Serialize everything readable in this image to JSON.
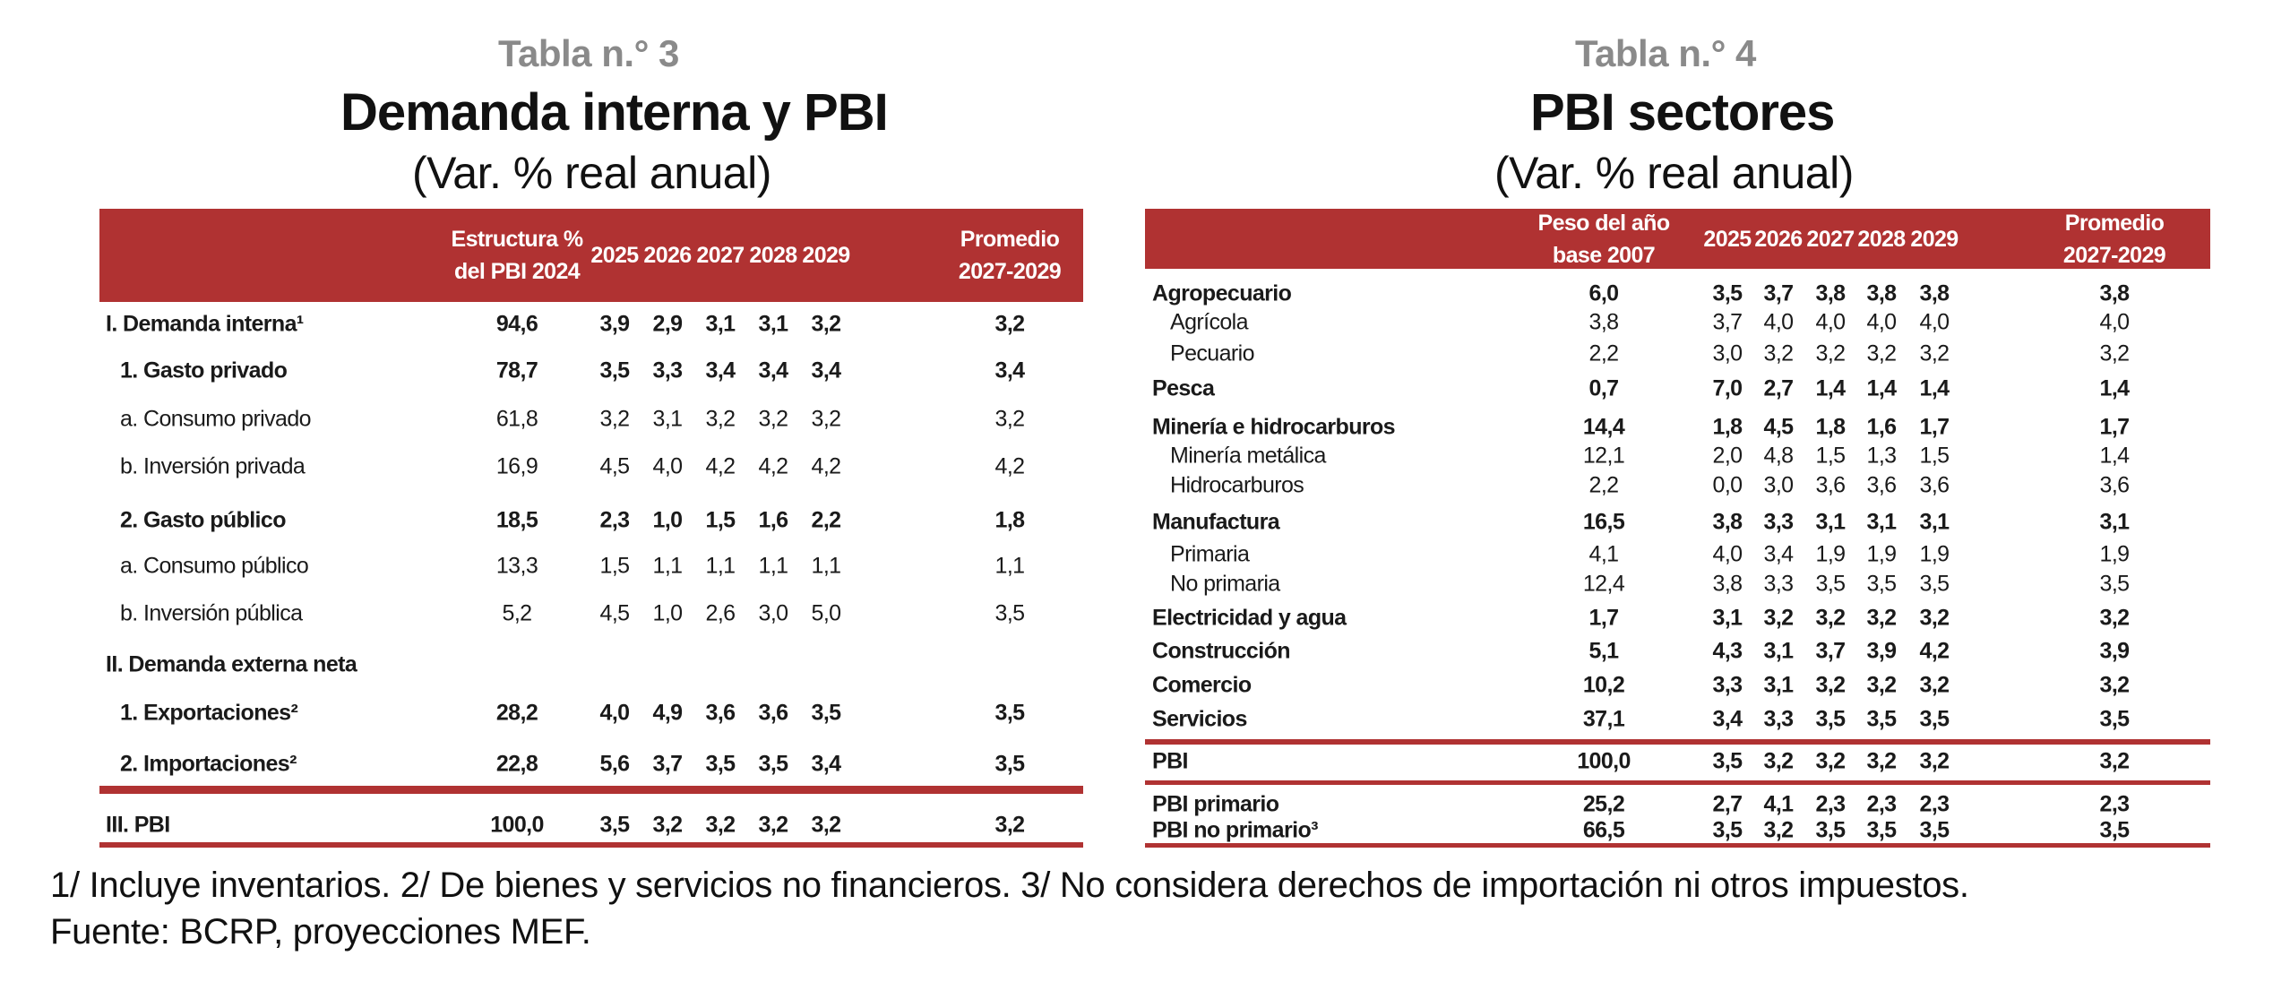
{
  "table3": {
    "number": "Tabla n.° 3",
    "title": "Demanda interna y PBI",
    "subtitle": "(Var. % real anual)",
    "headers": [
      "Estructura %\ndel PBI 2024",
      "2025",
      "2026",
      "2027",
      "2028",
      "2029",
      "Promedio\n2027-2029"
    ],
    "rows": [
      {
        "label": "I. Demanda interna¹",
        "bold": true,
        "indent": 0,
        "values": [
          "94,6",
          "3,9",
          "2,9",
          "3,1",
          "3,1",
          "3,2",
          "3,2"
        ]
      },
      {
        "label": "1. Gasto privado",
        "bold": true,
        "indent": 1,
        "values": [
          "78,7",
          "3,5",
          "3,3",
          "3,4",
          "3,4",
          "3,4",
          "3,4"
        ]
      },
      {
        "label": "a. Consumo privado",
        "bold": false,
        "indent": 1,
        "values": [
          "61,8",
          "3,2",
          "3,1",
          "3,2",
          "3,2",
          "3,2",
          "3,2"
        ]
      },
      {
        "label": "b.  Inversión privada",
        "bold": false,
        "indent": 1,
        "values": [
          "16,9",
          "4,5",
          "4,0",
          "4,2",
          "4,2",
          "4,2",
          "4,2"
        ]
      },
      {
        "label": "2. Gasto público",
        "bold": true,
        "indent": 1,
        "values": [
          "18,5",
          "2,3",
          "1,0",
          "1,5",
          "1,6",
          "2,2",
          "1,8"
        ]
      },
      {
        "label": "a. Consumo público",
        "bold": false,
        "indent": 1,
        "values": [
          "13,3",
          "1,5",
          "1,1",
          "1,1",
          "1,1",
          "1,1",
          "1,1"
        ]
      },
      {
        "label": "b. Inversión pública",
        "bold": false,
        "indent": 1,
        "values": [
          "5,2",
          "4,5",
          "1,0",
          "2,6",
          "3,0",
          "5,0",
          "3,5"
        ]
      },
      {
        "label": "II. Demanda externa neta",
        "bold": true,
        "indent": 0,
        "values": [
          "",
          "",
          "",
          "",
          "",
          "",
          ""
        ]
      },
      {
        "label": "1. Exportaciones²",
        "bold": true,
        "indent": 1,
        "values": [
          "28,2",
          "4,0",
          "4,9",
          "3,6",
          "3,6",
          "3,5",
          "3,5"
        ]
      },
      {
        "label": "2. Importaciones²",
        "bold": true,
        "indent": 1,
        "values": [
          "22,8",
          "5,6",
          "3,7",
          "3,5",
          "3,5",
          "3,4",
          "3,5"
        ]
      },
      {
        "label": "III. PBI",
        "bold": true,
        "indent": 0,
        "values": [
          "100,0",
          "3,5",
          "3,2",
          "3,2",
          "3,2",
          "3,2",
          "3,2"
        ]
      }
    ]
  },
  "table4": {
    "number": "Tabla n.° 4",
    "title": "PBI sectores",
    "subtitle": "(Var. % real anual)",
    "headers": [
      "Peso del año\nbase 2007",
      "2025",
      "2026",
      "2027",
      "2028",
      "2029",
      "Promedio\n2027-2029"
    ],
    "rows": [
      {
        "label": "Agropecuario",
        "bold": true,
        "indent": 0,
        "values": [
          "6,0",
          "3,5",
          "3,7",
          "3,8",
          "3,8",
          "3,8",
          "3,8"
        ]
      },
      {
        "label": "Agrícola",
        "bold": false,
        "indent": 1,
        "values": [
          "3,8",
          "3,7",
          "4,0",
          "4,0",
          "4,0",
          "4,0",
          "4,0"
        ]
      },
      {
        "label": "Pecuario",
        "bold": false,
        "indent": 1,
        "values": [
          "2,2",
          "3,0",
          "3,2",
          "3,2",
          "3,2",
          "3,2",
          "3,2"
        ]
      },
      {
        "label": "Pesca",
        "bold": true,
        "indent": 0,
        "values": [
          "0,7",
          "7,0",
          "2,7",
          "1,4",
          "1,4",
          "1,4",
          "1,4"
        ]
      },
      {
        "label": "Minería e hidrocarburos",
        "bold": true,
        "indent": 0,
        "values": [
          "14,4",
          "1,8",
          "4,5",
          "1,8",
          "1,6",
          "1,7",
          "1,7"
        ]
      },
      {
        "label": "Minería metálica",
        "bold": false,
        "indent": 1,
        "values": [
          "12,1",
          "2,0",
          "4,8",
          "1,5",
          "1,3",
          "1,5",
          "1,4"
        ]
      },
      {
        "label": "Hidrocarburos",
        "bold": false,
        "indent": 1,
        "values": [
          "2,2",
          "0,0",
          "3,0",
          "3,6",
          "3,6",
          "3,6",
          "3,6"
        ]
      },
      {
        "label": "Manufactura",
        "bold": true,
        "indent": 0,
        "values": [
          "16,5",
          "3,8",
          "3,3",
          "3,1",
          "3,1",
          "3,1",
          "3,1"
        ]
      },
      {
        "label": "Primaria",
        "bold": false,
        "indent": 1,
        "values": [
          "4,1",
          "4,0",
          "3,4",
          "1,9",
          "1,9",
          "1,9",
          "1,9"
        ]
      },
      {
        "label": "No primaria",
        "bold": false,
        "indent": 1,
        "values": [
          "12,4",
          "3,8",
          "3,3",
          "3,5",
          "3,5",
          "3,5",
          "3,5"
        ]
      },
      {
        "label": "Electricidad y agua",
        "bold": true,
        "indent": 0,
        "values": [
          "1,7",
          "3,1",
          "3,2",
          "3,2",
          "3,2",
          "3,2",
          "3,2"
        ]
      },
      {
        "label": "Construcción",
        "bold": true,
        "indent": 0,
        "values": [
          "5,1",
          "4,3",
          "3,1",
          "3,7",
          "3,9",
          "4,2",
          "3,9"
        ]
      },
      {
        "label": "Comercio",
        "bold": true,
        "indent": 0,
        "values": [
          "10,2",
          "3,3",
          "3,1",
          "3,2",
          "3,2",
          "3,2",
          "3,2"
        ]
      },
      {
        "label": "Servicios",
        "bold": true,
        "indent": 0,
        "values": [
          "37,1",
          "3,4",
          "3,3",
          "3,5",
          "3,5",
          "3,5",
          "3,5"
        ]
      },
      {
        "label": "PBI",
        "bold": true,
        "indent": 0,
        "values": [
          "100,0",
          "3,5",
          "3,2",
          "3,2",
          "3,2",
          "3,2",
          "3,2"
        ]
      },
      {
        "label": "PBI primario",
        "bold": true,
        "indent": 0,
        "values": [
          "25,2",
          "2,7",
          "4,1",
          "2,3",
          "2,3",
          "2,3",
          "2,3"
        ]
      },
      {
        "label": "PBI no primario³",
        "bold": true,
        "indent": 0,
        "values": [
          "66,5",
          "3,5",
          "3,2",
          "3,5",
          "3,5",
          "3,5",
          "3,5"
        ]
      }
    ]
  },
  "footnotes": {
    "notes": "1/ Incluye inventarios. 2/ De bienes y servicios no financieros. 3/ No considera derechos de importación ni otros impuestos.",
    "source": "Fuente: BCRP, proyecciones MEF."
  },
  "colors": {
    "accent": "#b03232"
  }
}
